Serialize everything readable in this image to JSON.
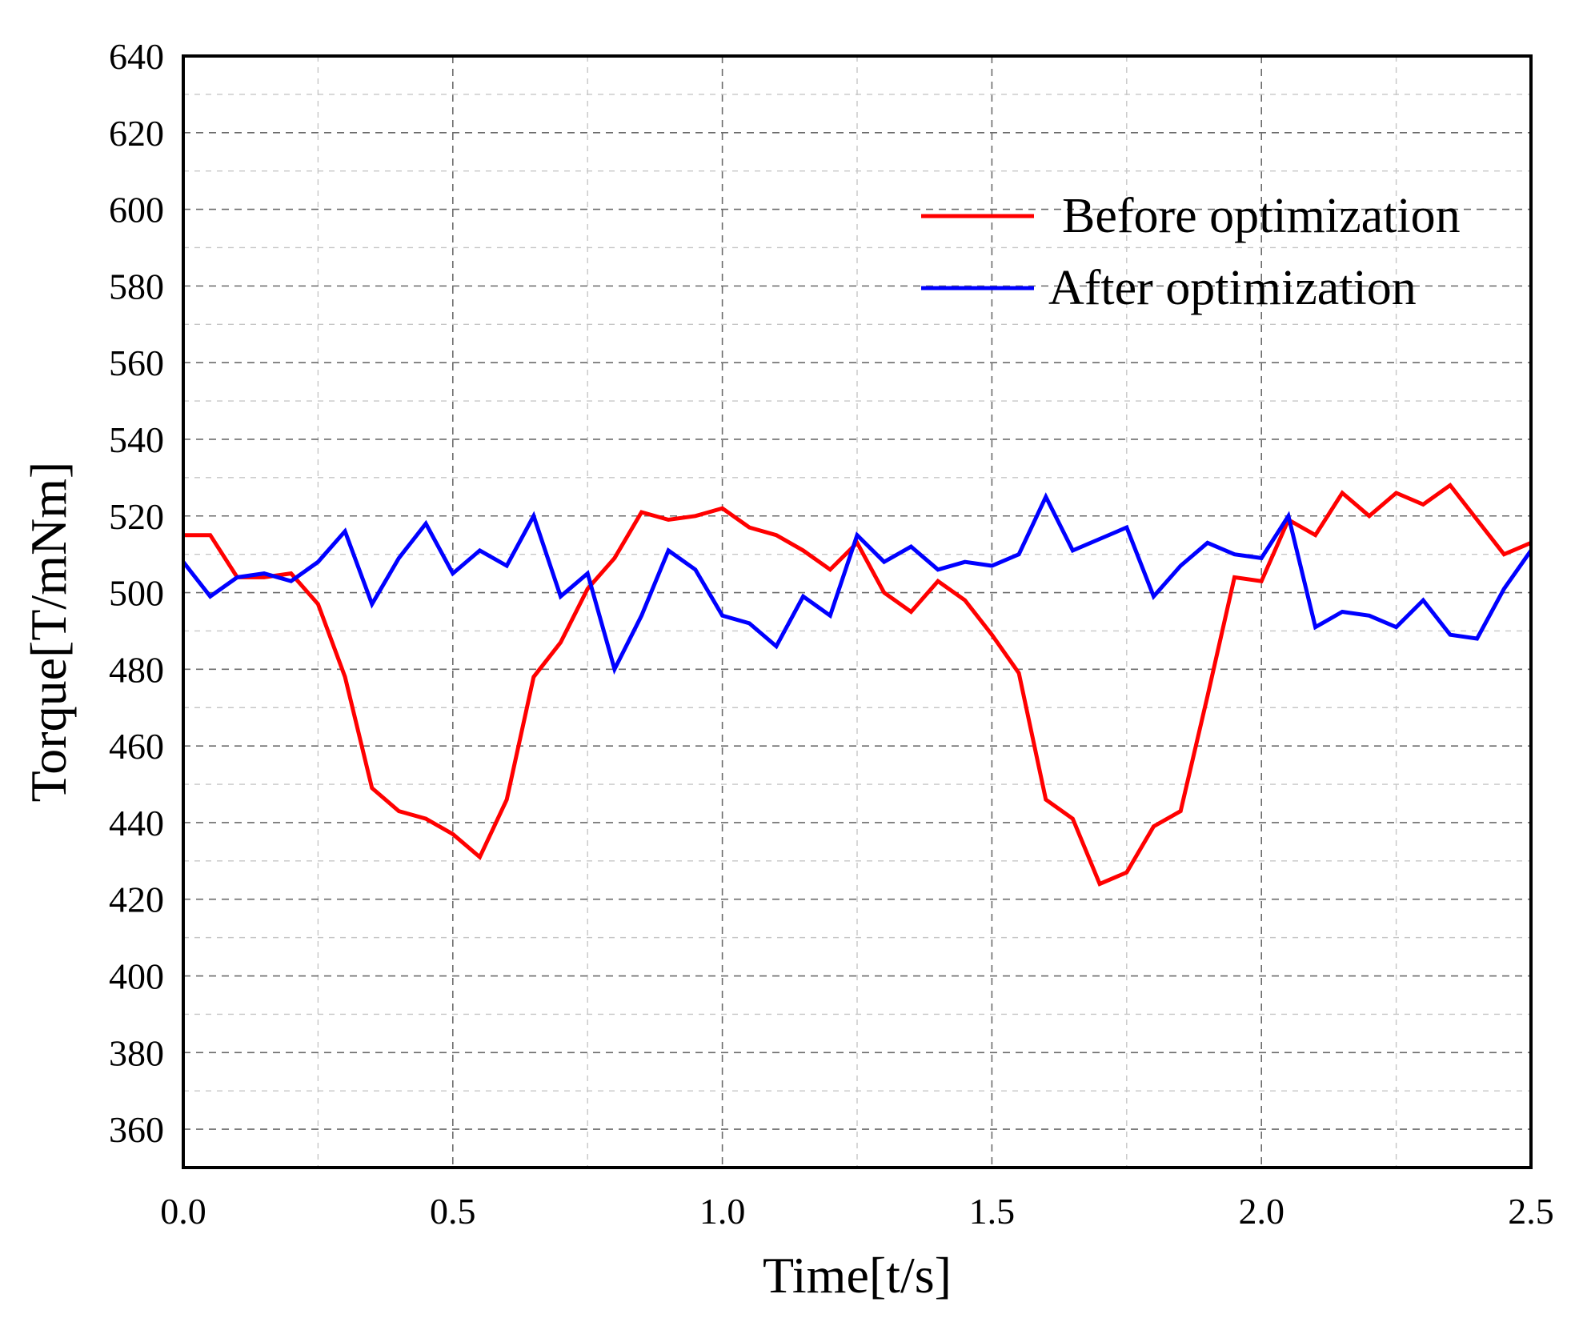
{
  "chart_data": {
    "type": "line",
    "title": "",
    "xlabel": "Time[t/s]",
    "ylabel": "Torque[T/mNm]",
    "xlim": [
      0,
      2.5
    ],
    "ylim": [
      350,
      640
    ],
    "x_ticks": [
      0.0,
      0.5,
      1.0,
      1.5,
      2.0,
      2.5
    ],
    "x_tick_labels": [
      "0.0",
      "0.5",
      "1.0",
      "1.5",
      "2.0",
      "2.5"
    ],
    "y_ticks": [
      360,
      380,
      400,
      420,
      440,
      460,
      480,
      500,
      520,
      540,
      560,
      580,
      600,
      620,
      640
    ],
    "y_tick_labels": [
      "360",
      "380",
      "400",
      "420",
      "440",
      "460",
      "480",
      "500",
      "520",
      "540",
      "560",
      "580",
      "600",
      "620",
      "640"
    ],
    "grid": true,
    "legend_position": "top-right",
    "x": [
      0.0,
      0.05,
      0.1,
      0.15,
      0.2,
      0.25,
      0.3,
      0.35,
      0.4,
      0.45,
      0.5,
      0.55,
      0.6,
      0.65,
      0.7,
      0.75,
      0.8,
      0.85,
      0.9,
      0.95,
      1.0,
      1.05,
      1.1,
      1.15,
      1.2,
      1.25,
      1.3,
      1.35,
      1.4,
      1.45,
      1.5,
      1.55,
      1.6,
      1.65,
      1.7,
      1.75,
      1.8,
      1.85,
      1.9,
      1.95,
      2.0,
      2.05,
      2.1,
      2.15,
      2.2,
      2.25,
      2.3,
      2.35,
      2.4,
      2.45,
      2.5
    ],
    "series": [
      {
        "name": "Before optimization",
        "color": "#ff0000",
        "values": [
          515,
          515,
          504,
          504,
          505,
          497,
          478,
          449,
          443,
          441,
          437,
          431,
          446,
          478,
          487,
          501,
          509,
          521,
          519,
          520,
          522,
          517,
          515,
          511,
          506,
          513,
          500,
          495,
          503,
          498,
          489,
          479,
          446,
          441,
          424,
          427,
          439,
          443,
          473,
          504,
          503,
          519,
          515,
          526,
          520,
          526,
          523,
          528,
          519,
          510,
          513
        ]
      },
      {
        "name": "After optimization",
        "color": "#0000ff",
        "values": [
          508,
          499,
          504,
          505,
          503,
          508,
          516,
          497,
          509,
          518,
          505,
          511,
          507,
          520,
          499,
          505,
          480,
          494,
          511,
          506,
          494,
          492,
          486,
          499,
          494,
          515,
          508,
          512,
          506,
          508,
          507,
          510,
          525,
          511,
          514,
          517,
          499,
          507,
          513,
          510,
          509,
          520,
          491,
          495,
          494,
          491,
          498,
          489,
          488,
          501,
          511
        ]
      }
    ]
  }
}
